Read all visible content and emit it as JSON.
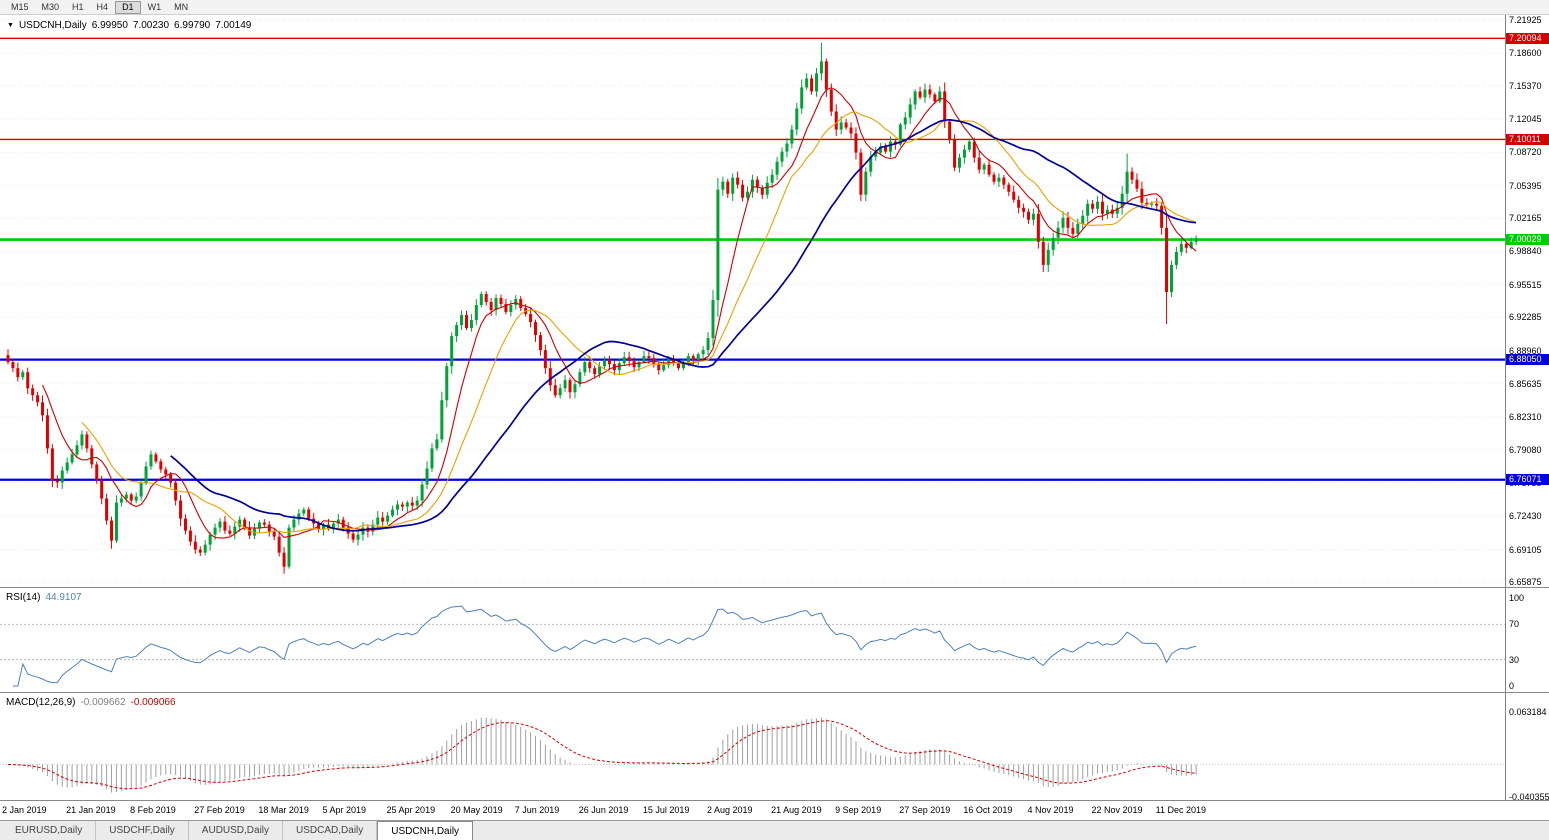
{
  "toolbar": {
    "timeframes": [
      "M15",
      "M30",
      "H1",
      "H4",
      "D1",
      "W1",
      "MN"
    ],
    "active_timeframe": "D1"
  },
  "title": {
    "dropdown_icon": "▼",
    "symbol": "USDCNH,Daily",
    "open": "6.99950",
    "high": "7.00230",
    "low": "6.99790",
    "close": "7.00149"
  },
  "rsi_panel": {
    "name": "RSI(14)",
    "value": "44.9107",
    "axis_ticks": [
      100,
      70,
      30,
      0
    ]
  },
  "macd_panel": {
    "name": "MACD(12,26,9)",
    "value_main": "-0.009662",
    "value_signal": "-0.009066",
    "axis_max": "0.063184",
    "axis_min": "-0.040355"
  },
  "tabs": [
    "EURUSD,Daily",
    "USDCHF,Daily",
    "AUDUSD,Daily",
    "USDCAD,Daily",
    "USDCNH,Daily"
  ],
  "active_tab": "USDCNH,Daily",
  "chart_data": {
    "type": "candlestick",
    "symbol": "USDCNH",
    "timeframe": "Daily",
    "title": "USDCNH,Daily 6.99950 7.00230 6.99790 7.00149",
    "price_axis_ticks": [
      7.21925,
      7.186,
      7.1537,
      7.12045,
      7.0872,
      7.05395,
      7.02165,
      6.9884,
      6.95515,
      6.92285,
      6.8896,
      6.85635,
      6.8231,
      6.7908,
      6.75755,
      6.7243,
      6.69105,
      6.65875
    ],
    "ylim": [
      6.65875,
      7.21925
    ],
    "date_labels": [
      "2 Jan 2019",
      "21 Jan 2019",
      "8 Feb 2019",
      "27 Feb 2019",
      "18 Mar 2019",
      "5 Apr 2019",
      "25 Apr 2019",
      "20 May 2019",
      "7 Jun 2019",
      "26 Jun 2019",
      "15 Jul 2019",
      "2 Aug 2019",
      "21 Aug 2019",
      "9 Sep 2019",
      "27 Sep 2019",
      "16 Oct 2019",
      "4 Nov 2019",
      "22 Nov 2019",
      "11 Dec 2019"
    ],
    "candles_per_label": 13,
    "levels": [
      {
        "price": 7.20094,
        "label": "7.20094",
        "color": "#d40000",
        "width": 1.4
      },
      {
        "price": 7.10011,
        "label": "7.10011",
        "color": "#d40000",
        "width": 1.4
      },
      {
        "price": 7.00029,
        "label": "7.00029",
        "color": "#00cc00",
        "width": 2.6
      },
      {
        "price": 6.8805,
        "label": "6.88050",
        "color": "#0000e0",
        "width": 2.2
      },
      {
        "price": 6.76071,
        "label": "6.76071",
        "color": "#0000e0",
        "width": 2.2
      }
    ],
    "moving_averages": [
      {
        "period": 8,
        "color": "#cc0000",
        "width": 1.1
      },
      {
        "period": 16,
        "color": "#e8a200",
        "width": 1.1
      },
      {
        "period": 34,
        "color": "#000099",
        "width": 1.7
      }
    ],
    "up_color": "#00a136",
    "down_color": "#e00000",
    "first_open": 6.885,
    "closes": [
      6.878,
      6.872,
      6.863,
      6.868,
      6.852,
      6.845,
      6.838,
      6.825,
      6.792,
      6.76,
      6.758,
      6.77,
      6.778,
      6.786,
      6.795,
      6.806,
      6.792,
      6.776,
      6.76,
      6.742,
      6.72,
      6.7,
      6.738,
      6.742,
      6.746,
      6.74,
      6.744,
      6.758,
      6.774,
      6.786,
      6.779,
      6.771,
      6.766,
      6.758,
      6.74,
      6.722,
      6.71,
      6.699,
      6.691,
      6.688,
      6.696,
      6.706,
      6.713,
      6.719,
      6.71,
      6.707,
      6.714,
      6.721,
      6.713,
      6.705,
      6.712,
      6.718,
      6.716,
      6.709,
      6.704,
      6.688,
      6.674,
      6.713,
      6.721,
      6.727,
      6.731,
      6.722,
      6.717,
      6.711,
      6.716,
      6.712,
      6.717,
      6.721,
      6.713,
      6.707,
      6.701,
      6.706,
      6.713,
      6.709,
      6.716,
      6.723,
      6.719,
      6.725,
      6.731,
      6.736,
      6.734,
      6.738,
      6.735,
      6.74,
      6.756,
      6.772,
      6.792,
      6.801,
      6.84,
      6.874,
      6.904,
      6.915,
      6.925,
      6.912,
      6.92,
      6.935,
      6.946,
      6.938,
      6.93,
      6.942,
      6.936,
      6.928,
      6.935,
      6.941,
      6.932,
      6.926,
      6.918,
      6.905,
      6.89,
      6.872,
      6.855,
      6.845,
      6.852,
      6.86,
      6.848,
      6.856,
      6.868,
      6.878,
      6.872,
      6.866,
      6.874,
      6.88,
      6.876,
      6.87,
      6.877,
      6.883,
      6.879,
      6.873,
      6.878,
      6.884,
      6.882,
      6.876,
      6.87,
      6.875,
      6.881,
      6.877,
      6.872,
      6.878,
      6.884,
      6.88,
      6.886,
      6.89,
      6.902,
      6.94,
      7.05,
      7.058,
      7.046,
      7.062,
      7.055,
      7.042,
      7.048,
      7.06,
      7.052,
      7.045,
      7.057,
      7.065,
      7.078,
      7.088,
      7.096,
      7.11,
      7.131,
      7.152,
      7.161,
      7.148,
      7.166,
      7.178,
      7.15,
      7.128,
      7.11,
      7.117,
      7.112,
      7.106,
      7.087,
      7.045,
      7.068,
      7.083,
      7.087,
      7.093,
      7.088,
      7.098,
      7.095,
      7.115,
      7.122,
      7.135,
      7.148,
      7.142,
      7.15,
      7.145,
      7.138,
      7.148,
      7.118,
      7.1,
      7.072,
      7.082,
      7.09,
      7.098,
      7.082,
      7.07,
      7.075,
      7.065,
      7.058,
      7.062,
      7.055,
      7.048,
      7.04,
      7.032,
      7.028,
      7.02,
      7.026,
      6.998,
      6.975,
      6.99,
      7.002,
      7.012,
      7.022,
      7.012,
      7.006,
      7.016,
      7.024,
      7.036,
      7.031,
      7.038,
      7.026,
      7.03,
      7.026,
      7.032,
      7.046,
      7.068,
      7.06,
      7.051,
      7.037,
      7.035,
      7.036,
      7.034,
      7.012,
      6.948,
      6.975,
      6.988,
      6.996,
      6.992,
      6.998,
      7.0015
    ],
    "wick_overrides": {
      "21": {
        "low": 6.692
      },
      "56": {
        "low": 6.667
      },
      "165": {
        "high": 7.1965
      },
      "210": {
        "low": 6.968
      },
      "227": {
        "high": 7.086
      },
      "235": {
        "low": 6.916
      }
    },
    "rsi": {
      "period": 14,
      "color": "#4f81bd",
      "current": 44.9107,
      "scale": [
        0,
        100
      ],
      "level_lines": [
        70,
        30
      ]
    },
    "macd": {
      "fast": 12,
      "slow": 26,
      "signal": 9,
      "hist_color": "#a0a0a0",
      "signal_color": "#d40000",
      "scale_max": 0.063184,
      "scale_min": -0.040355,
      "current_main": -0.009662,
      "current_signal": -0.009066
    }
  }
}
